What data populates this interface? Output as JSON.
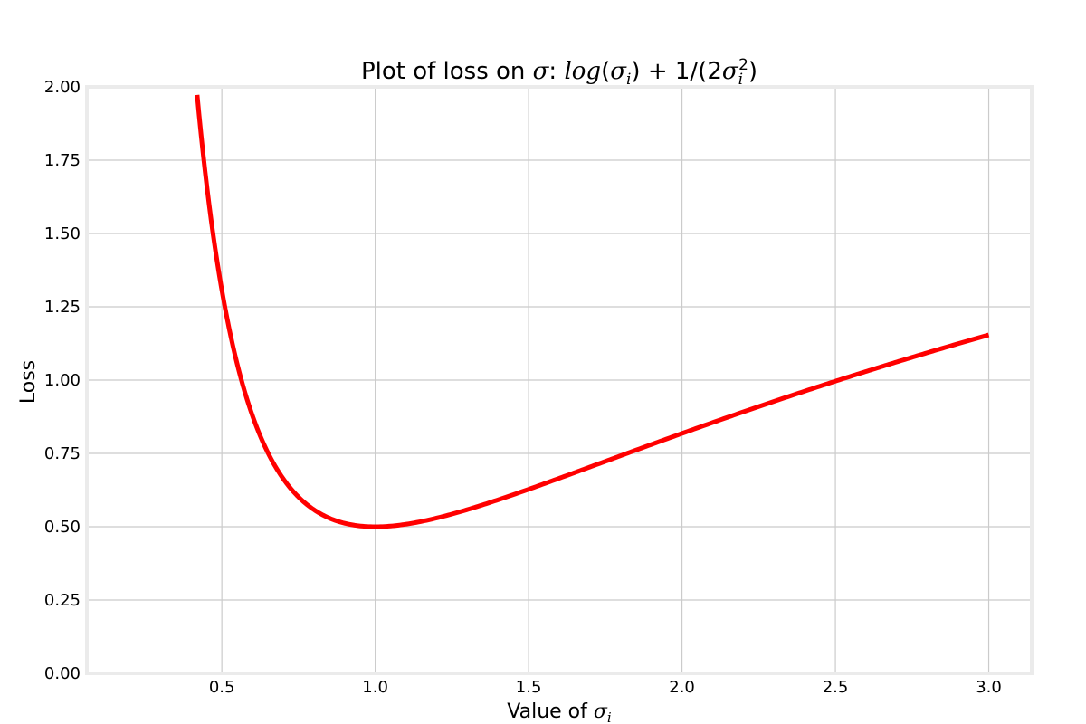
{
  "chart_data": {
    "type": "line",
    "title": {
      "prefix": "Plot of loss on ",
      "sigma": "σ",
      "colon": ": ",
      "formula_log": "log",
      "formula_open": "(",
      "formula_sigma_i": "σ",
      "formula_sub_i": "i",
      "formula_mid": ") + 1/(2",
      "formula_sigma_i2": "σ",
      "formula_sub_i2": "i",
      "formula_sup_2": "2",
      "formula_close": ")"
    },
    "xlabel": {
      "text": "Value of ",
      "symbol": "σ",
      "sub": "i"
    },
    "ylabel": "Loss",
    "xlim": [
      0.06,
      3.14
    ],
    "ylim": [
      0,
      2
    ],
    "xticks": [
      "0.5",
      "1.0",
      "1.5",
      "2.0",
      "2.5",
      "3.0"
    ],
    "yticks": [
      "0.00",
      "0.25",
      "0.50",
      "0.75",
      "1.00",
      "1.25",
      "1.50",
      "1.75",
      "2.00"
    ],
    "grid": true,
    "series": [
      {
        "color": "#ff0000",
        "x_range": [
          0.4,
          3.0
        ],
        "function": "log(x) + 1/(2*x^2)",
        "x": [
          0.42,
          0.45,
          0.5,
          0.55,
          0.6,
          0.7,
          0.8,
          0.9,
          1.0,
          1.1,
          1.25,
          1.5,
          1.75,
          2.0,
          2.25,
          2.5,
          2.75,
          3.0
        ],
        "y": [
          1.967,
          1.67,
          1.307,
          1.055,
          0.878,
          0.664,
          0.558,
          0.512,
          0.5,
          0.509,
          0.543,
          0.628,
          0.723,
          0.818,
          0.91,
          0.996,
          1.078,
          1.154
        ]
      }
    ]
  }
}
